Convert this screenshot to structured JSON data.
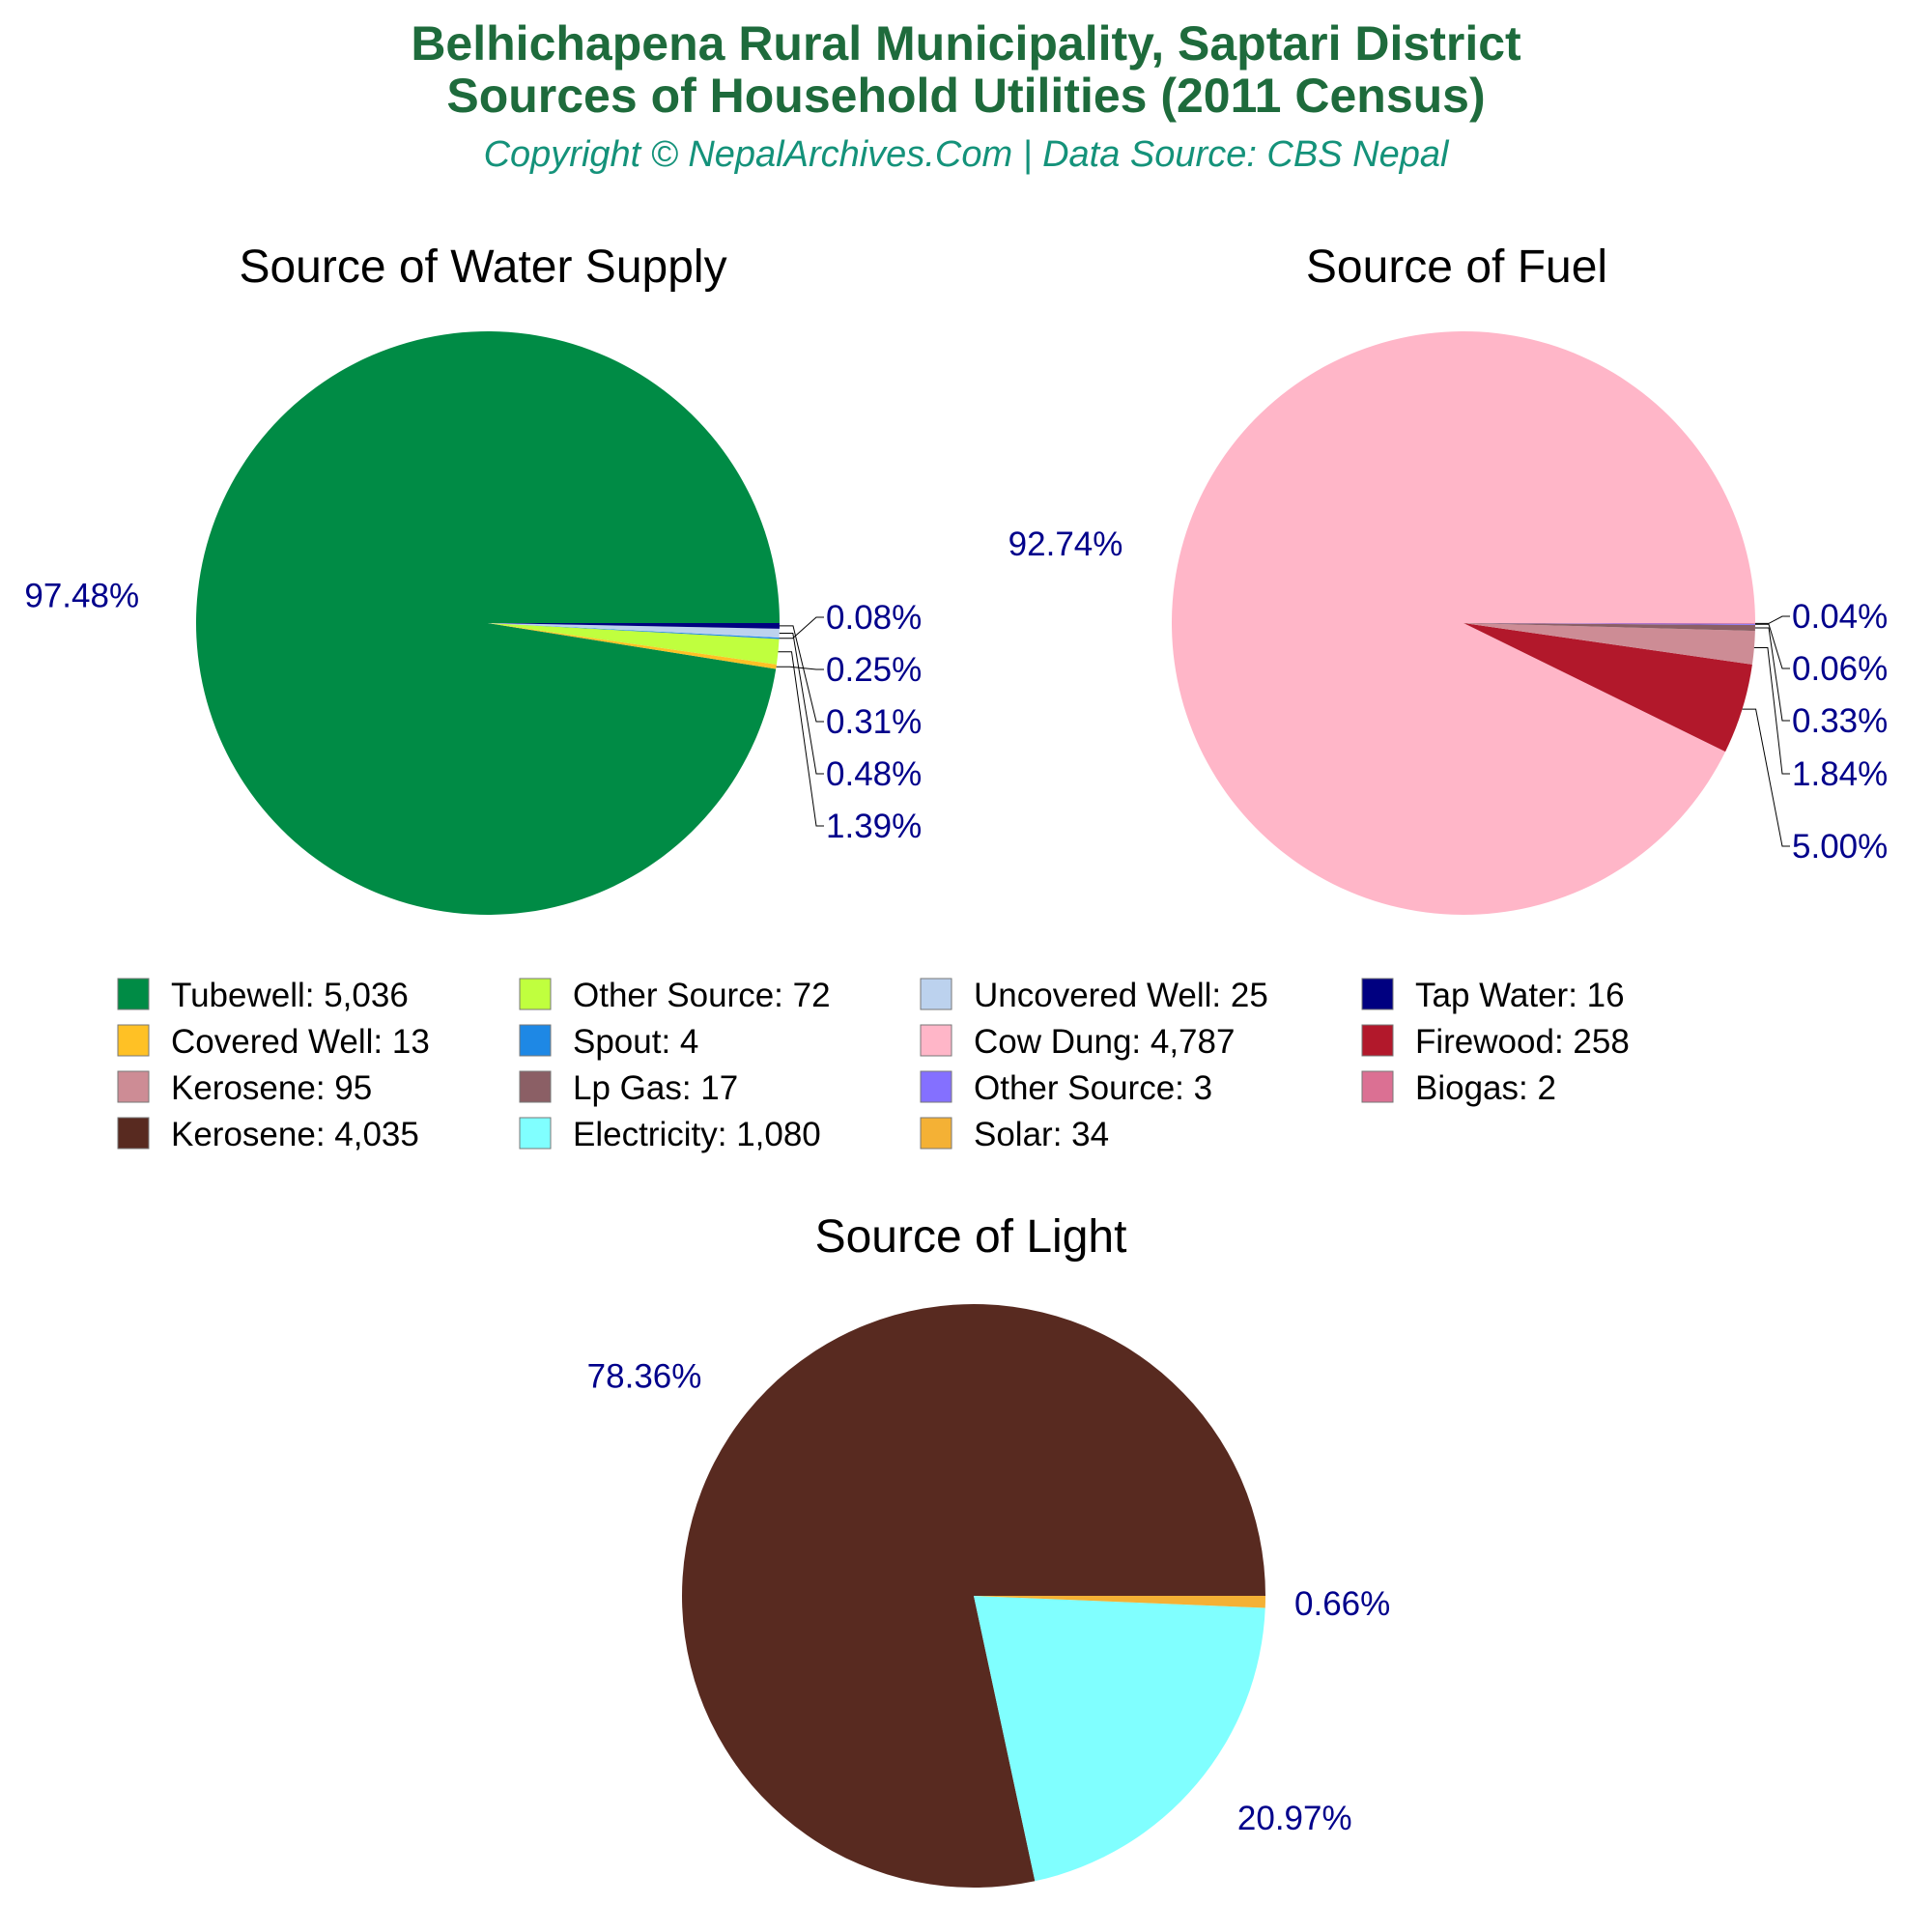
{
  "header": {
    "title_line1": "Belhichapena Rural Municipality, Saptari District",
    "title_line2": "Sources of Household Utilities (2011 Census)",
    "subtitle": "Copyright © NepalArchives.Com | Data Source: CBS Nepal"
  },
  "chart_data": [
    {
      "type": "pie",
      "title": "Source of Water Supply",
      "start_angle": "3 o'clock, counter-clockwise",
      "slices": [
        {
          "label": "Tubewell",
          "value": 5036,
          "percent_label": "97.48%",
          "color": "#008b45"
        },
        {
          "label": "Covered Well",
          "value": 13,
          "percent_label": "0.25%",
          "color": "#ffc125"
        },
        {
          "label": "Other Source",
          "value": 72,
          "percent_label": "1.39%",
          "color": "#c0ff3e"
        },
        {
          "label": "Spout",
          "value": 4,
          "percent_label": "0.08%",
          "color": "#1e88e5"
        },
        {
          "label": "Uncovered Well",
          "value": 25,
          "percent_label": "0.48%",
          "color": "#bcd2ee"
        },
        {
          "label": "Tap Water",
          "value": 16,
          "percent_label": "0.31%",
          "color": "#000080"
        }
      ]
    },
    {
      "type": "pie",
      "title": "Source of Fuel",
      "start_angle": "3 o'clock, counter-clockwise",
      "slices": [
        {
          "label": "Cow Dung",
          "value": 4787,
          "percent_label": "92.74%",
          "color": "#ffb6c8"
        },
        {
          "label": "Firewood",
          "value": 258,
          "percent_label": "5.00%",
          "color": "#b2182b"
        },
        {
          "label": "Kerosene",
          "value": 95,
          "percent_label": "1.84%",
          "color": "#cd8c95"
        },
        {
          "label": "Lp Gas",
          "value": 17,
          "percent_label": "0.33%",
          "color": "#8b5f65"
        },
        {
          "label": "Other Source",
          "value": 3,
          "percent_label": "0.06%",
          "color": "#8470ff"
        },
        {
          "label": "Biogas",
          "value": 2,
          "percent_label": "0.04%",
          "color": "#db7093"
        }
      ]
    },
    {
      "type": "pie",
      "title": "Source of Light",
      "start_angle": "3 o'clock, counter-clockwise",
      "slices": [
        {
          "label": "Kerosene",
          "value": 4035,
          "percent_label": "78.36%",
          "color": "#582a20"
        },
        {
          "label": "Electricity",
          "value": 1080,
          "percent_label": "20.97%",
          "color": "#80ffff"
        },
        {
          "label": "Solar",
          "value": 34,
          "percent_label": "0.66%",
          "color": "#f4b135"
        }
      ]
    }
  ],
  "legend": {
    "placement": "center, between charts",
    "items": [
      {
        "text": "Tubewell: 5,036",
        "color": "#008b45"
      },
      {
        "text": "Other Source: 72",
        "color": "#c0ff3e"
      },
      {
        "text": "Uncovered Well: 25",
        "color": "#bcd2ee"
      },
      {
        "text": "Tap Water: 16",
        "color": "#000080"
      },
      {
        "text": "Covered Well: 13",
        "color": "#ffc125"
      },
      {
        "text": "Spout: 4",
        "color": "#1e88e5"
      },
      {
        "text": "Cow Dung: 4,787",
        "color": "#ffb6c8"
      },
      {
        "text": "Firewood: 258",
        "color": "#b2182b"
      },
      {
        "text": "Kerosene: 95",
        "color": "#cd8c95"
      },
      {
        "text": "Lp Gas: 17",
        "color": "#8b5f65"
      },
      {
        "text": "Other Source: 3",
        "color": "#8470ff"
      },
      {
        "text": "Biogas: 2",
        "color": "#db7093"
      },
      {
        "text": "Kerosene: 4,035",
        "color": "#582a20"
      },
      {
        "text": "Electricity: 1,080",
        "color": "#80ffff"
      },
      {
        "text": "Solar: 34",
        "color": "#f4b135"
      }
    ]
  }
}
